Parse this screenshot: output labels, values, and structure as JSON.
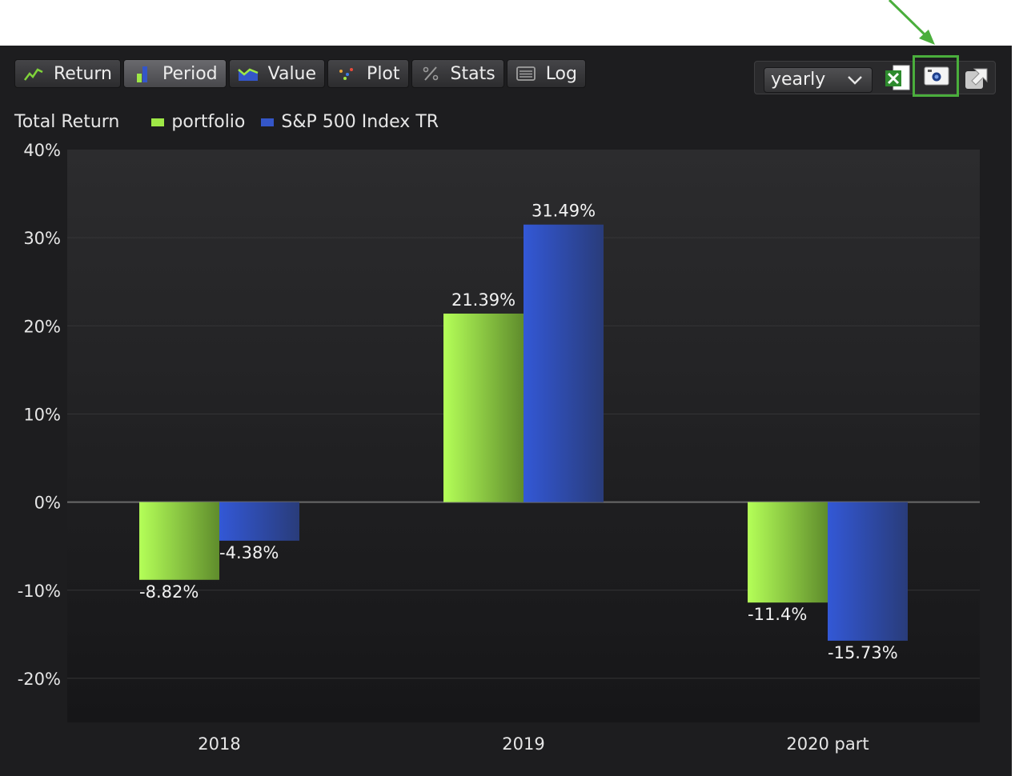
{
  "toolbar": {
    "tabs": [
      {
        "label": "Return",
        "icon": "line-chart-icon"
      },
      {
        "label": "Period",
        "icon": "bar-chart-icon",
        "active": true
      },
      {
        "label": "Value",
        "icon": "area-chart-icon"
      },
      {
        "label": "Plot",
        "icon": "scatter-plot-icon"
      },
      {
        "label": "Stats",
        "icon": "percent-icon"
      },
      {
        "label": "Log",
        "icon": "log-list-icon"
      }
    ],
    "period_select": {
      "value": "yearly"
    },
    "export_icons": [
      "excel-export-icon",
      "snapshot-camera-icon",
      "popout-icon"
    ]
  },
  "colors": {
    "portfolio": "#9ee846",
    "benchmark": "#3456c8",
    "highlight": "#4aae3c"
  },
  "chart_data": {
    "type": "bar",
    "title": "Total Return",
    "categories": [
      "2018",
      "2019",
      "2020 part"
    ],
    "series": [
      {
        "name": "portfolio",
        "values": [
          -8.82,
          21.39,
          -11.4
        ],
        "labels": [
          "-8.82%",
          "21.39%",
          "-11.4%"
        ]
      },
      {
        "name": "S&P 500 Index TR",
        "values": [
          -4.38,
          31.49,
          -15.73
        ],
        "labels": [
          "-4.38%",
          "31.49%",
          "-15.73%"
        ]
      }
    ],
    "ylim": [
      -25,
      40
    ],
    "yticks": [
      40,
      30,
      20,
      10,
      0,
      -10,
      -20
    ],
    "ytick_labels": [
      "40%",
      "30%",
      "20%",
      "10%",
      "0%",
      "-10%",
      "-20%"
    ],
    "grid": true,
    "legend": "top-left"
  }
}
